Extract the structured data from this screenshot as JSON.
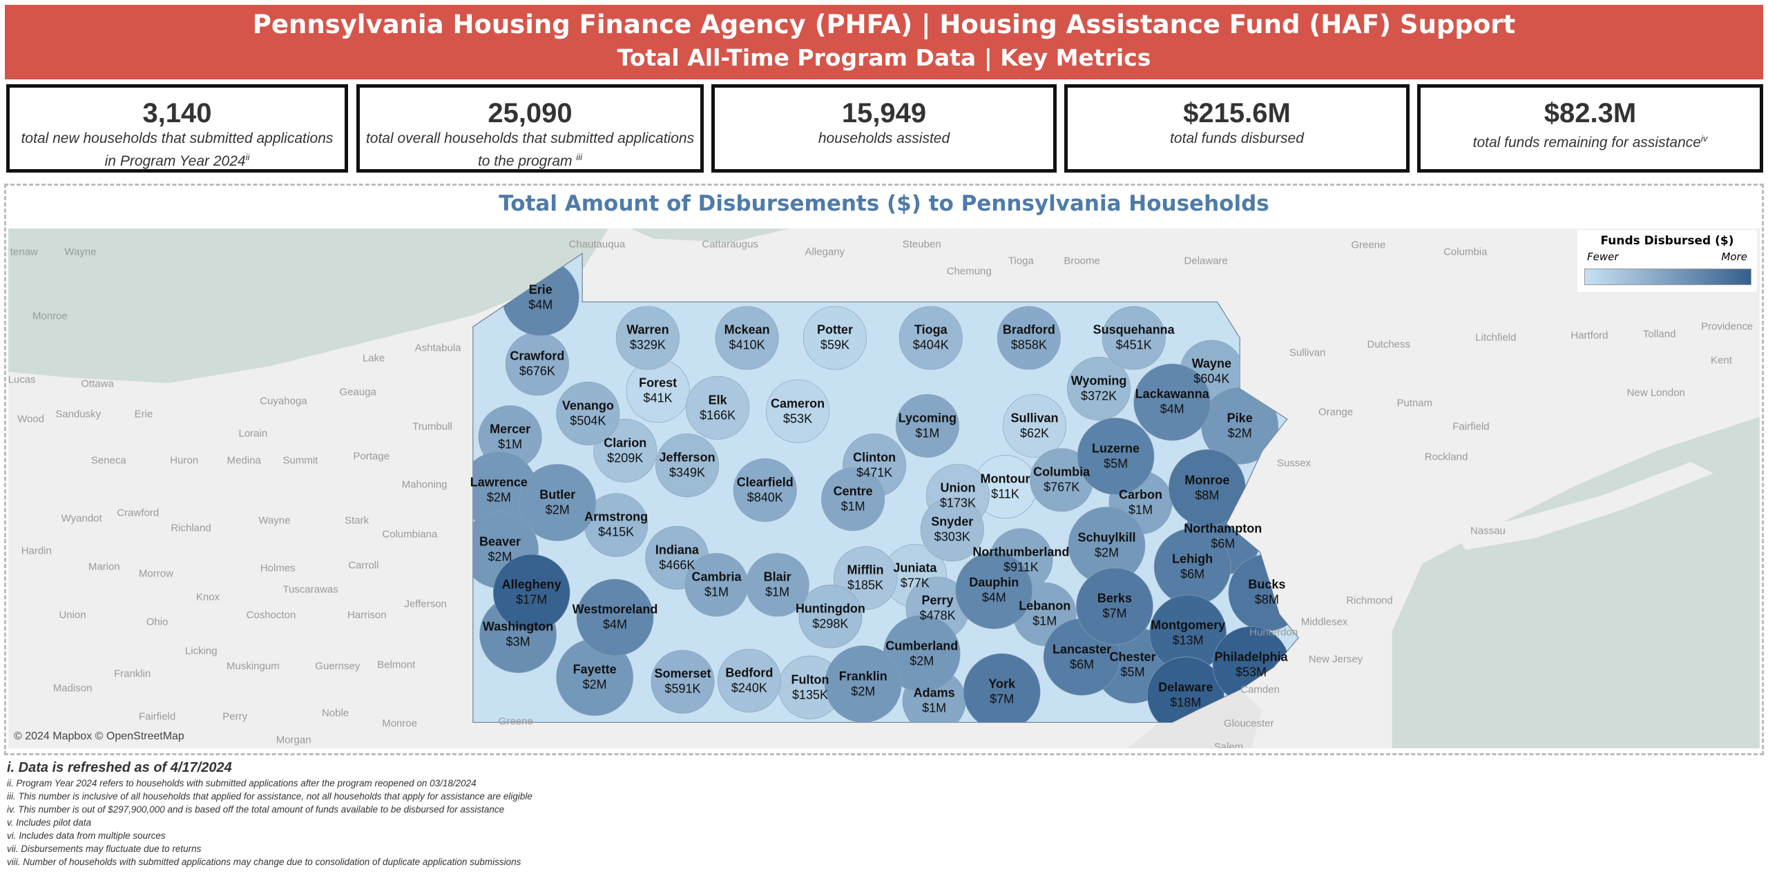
{
  "header": {
    "title": "Pennsylvania Housing Finance Agency (PHFA) | Housing Assistance Fund (HAF) Support",
    "subtitle": "Total All-Time Program Data | Key Metrics"
  },
  "kpis": [
    {
      "value": "3,140",
      "label": "total new households that submitted applications",
      "label2": "in Program Year 2024",
      "note": "ii"
    },
    {
      "value": "25,090",
      "label": "total overall households that submitted applications",
      "label2": "to the program ",
      "note": "iii"
    },
    {
      "value": "15,949",
      "label": "households assisted",
      "label2": "",
      "note": ""
    },
    {
      "value": "$215.6M",
      "label": "total funds disbursed",
      "label2": "",
      "note": ""
    },
    {
      "value": "$82.3M",
      "label": "total funds remaining for assistance",
      "label2": "",
      "note": "iv"
    }
  ],
  "map": {
    "title": "Total Amount of Disbursements ($) to Pennsylvania Households",
    "attribution": "© 2024 Mapbox © OpenStreetMap",
    "legend": {
      "title": "Funds Disbursed ($)",
      "low": "Fewer",
      "high": "More",
      "color_low": "#c7e1f3",
      "color_high": "#35608e"
    },
    "colors": {
      "water": "#cfdcd8",
      "land": "#efefef",
      "state_fill": "#c7e1f3"
    },
    "counties": [
      {
        "name": "Erie",
        "label": "$4M",
        "value": 4000000
      },
      {
        "name": "Crawford",
        "label": "$676K",
        "value": 676000
      },
      {
        "name": "Warren",
        "label": "$329K",
        "value": 329000
      },
      {
        "name": "Mckean",
        "label": "$410K",
        "value": 410000
      },
      {
        "name": "Potter",
        "label": "$59K",
        "value": 59000
      },
      {
        "name": "Tioga",
        "label": "$404K",
        "value": 404000
      },
      {
        "name": "Bradford",
        "label": "$858K",
        "value": 858000
      },
      {
        "name": "Susquehanna",
        "label": "$451K",
        "value": 451000
      },
      {
        "name": "Wayne",
        "label": "$604K",
        "value": 604000
      },
      {
        "name": "Forest",
        "label": "$41K",
        "value": 41000
      },
      {
        "name": "Venango",
        "label": "$504K",
        "value": 504000
      },
      {
        "name": "Elk",
        "label": "$166K",
        "value": 166000
      },
      {
        "name": "Cameron",
        "label": "$53K",
        "value": 53000
      },
      {
        "name": "Clinton",
        "label": "$471K",
        "value": 471000
      },
      {
        "name": "Lycoming",
        "label": "$1M",
        "value": 1000000
      },
      {
        "name": "Sullivan",
        "label": "$62K",
        "value": 62000
      },
      {
        "name": "Wyoming",
        "label": "$372K",
        "value": 372000
      },
      {
        "name": "Lackawanna",
        "label": "$4M",
        "value": 4000000
      },
      {
        "name": "Pike",
        "label": "$2M",
        "value": 2000000
      },
      {
        "name": "Mercer",
        "label": "$1M",
        "value": 1000000
      },
      {
        "name": "Clarion",
        "label": "$209K",
        "value": 209000
      },
      {
        "name": "Jefferson",
        "label": "$349K",
        "value": 349000
      },
      {
        "name": "Clearfield",
        "label": "$840K",
        "value": 840000
      },
      {
        "name": "Centre",
        "label": "$1M",
        "value": 1000000
      },
      {
        "name": "Union",
        "label": "$173K",
        "value": 173000
      },
      {
        "name": "Montour",
        "label": "$11K",
        "value": 11000
      },
      {
        "name": "Columbia",
        "label": "$767K",
        "value": 767000
      },
      {
        "name": "Luzerne",
        "label": "$5M",
        "value": 5000000
      },
      {
        "name": "Monroe",
        "label": "$8M",
        "value": 8000000
      },
      {
        "name": "Carbon",
        "label": "$1M",
        "value": 1000000
      },
      {
        "name": "Lawrence",
        "label": "$2M",
        "value": 2000000
      },
      {
        "name": "Butler",
        "label": "$2M",
        "value": 2000000
      },
      {
        "name": "Armstrong",
        "label": "$415K",
        "value": 415000
      },
      {
        "name": "Indiana",
        "label": "$466K",
        "value": 466000
      },
      {
        "name": "Snyder",
        "label": "$303K",
        "value": 303000
      },
      {
        "name": "Northumberland",
        "label": "$911K",
        "value": 911000
      },
      {
        "name": "Schuylkill",
        "label": "$2M",
        "value": 2000000
      },
      {
        "name": "Northampton",
        "label": "$6M",
        "value": 6000000
      },
      {
        "name": "Lehigh",
        "label": "$6M",
        "value": 6000000
      },
      {
        "name": "Beaver",
        "label": "$2M",
        "value": 2000000
      },
      {
        "name": "Allegheny",
        "label": "$17M",
        "value": 17000000
      },
      {
        "name": "Cambria",
        "label": "$1M",
        "value": 1000000
      },
      {
        "name": "Blair",
        "label": "$1M",
        "value": 1000000
      },
      {
        "name": "Mifflin",
        "label": "$185K",
        "value": 185000
      },
      {
        "name": "Juniata",
        "label": "$77K",
        "value": 77000
      },
      {
        "name": "Dauphin",
        "label": "$4M",
        "value": 4000000
      },
      {
        "name": "Lebanon",
        "label": "$1M",
        "value": 1000000
      },
      {
        "name": "Berks",
        "label": "$7M",
        "value": 7000000
      },
      {
        "name": "Bucks",
        "label": "$8M",
        "value": 8000000
      },
      {
        "name": "Westmoreland",
        "label": "$4M",
        "value": 4000000
      },
      {
        "name": "Huntingdon",
        "label": "$298K",
        "value": 298000
      },
      {
        "name": "Perry",
        "label": "$478K",
        "value": 478000
      },
      {
        "name": "Montgomery",
        "label": "$13M",
        "value": 13000000
      },
      {
        "name": "Washington",
        "label": "$3M",
        "value": 3000000
      },
      {
        "name": "Cumberland",
        "label": "$2M",
        "value": 2000000
      },
      {
        "name": "Lancaster",
        "label": "$6M",
        "value": 6000000
      },
      {
        "name": "Chester",
        "label": "$5M",
        "value": 5000000
      },
      {
        "name": "Philadelphia",
        "label": "$53M",
        "value": 53000000
      },
      {
        "name": "Delaware",
        "label": "$18M",
        "value": 18000000
      },
      {
        "name": "Somerset",
        "label": "$591K",
        "value": 591000
      },
      {
        "name": "Bedford",
        "label": "$240K",
        "value": 240000
      },
      {
        "name": "Fulton",
        "label": "$135K",
        "value": 135000
      },
      {
        "name": "Franklin",
        "label": "$2M",
        "value": 2000000
      },
      {
        "name": "Adams",
        "label": "$1M",
        "value": 1000000
      },
      {
        "name": "York",
        "label": "$7M",
        "value": 7000000
      },
      {
        "name": "Fayette",
        "label": "$2M",
        "value": 2000000
      }
    ],
    "basemap_labels": [
      "tenaw",
      "Wayne",
      "Monroe",
      "Lucas",
      "Ottawa",
      "Wood",
      "Sandusky",
      "Erie",
      "Cuyahoga",
      "Geauga",
      "Lake",
      "Ashtabula",
      "Trumbull",
      "Lorain",
      "Seneca",
      "Huron",
      "Medina",
      "Summit",
      "Portage",
      "Mahoning",
      "Wyandot",
      "Crawford",
      "Richland",
      "Wayne",
      "Stark",
      "Columbiana",
      "Hardin",
      "Marion",
      "Morrow",
      "Holmes",
      "Carroll",
      "Knox",
      "Tuscarawas",
      "Coshocton",
      "Harrison",
      "Jefferson",
      "Union",
      "Ohio",
      "Licking",
      "Guernsey",
      "Franklin",
      "Muskingum",
      "Belmont",
      "Madison",
      "Fairfield",
      "Perry",
      "Noble",
      "Monroe",
      "Morgan",
      "Greene",
      "Chautauqua",
      "Cattaraugus",
      "Allegany",
      "Steuben",
      "Chemung",
      "Tioga",
      "Broome",
      "Delaware",
      "Greene",
      "Columbia",
      "Dutchess",
      "Litchfield",
      "Hartford",
      "Tolland",
      "Providence",
      "Kent",
      "Sullivan",
      "Orange",
      "Putnam",
      "Fairfield",
      "New London",
      "Sussex",
      "Rockland",
      "Nassau",
      "Hunterdon",
      "Middlesex",
      "Richmond",
      "New Jersey",
      "Gloucester",
      "Salem",
      "Camden"
    ]
  },
  "footnotes": {
    "refresh": "i. Data is refreshed as of 4/17/2024",
    "notes": [
      "ii. Program Year 2024 refers to households with submitted applications after the program reopened on 03/18/2024",
      "iii. This number is inclusive of all households that applied for assistance, not all households that apply for assistance are eligible",
      "iv. This number is out of $297,900,000 and is based off the total amount of funds available to be disbursed for assistance",
      "v. Includes pilot data",
      "vi. Includes data from multiple sources",
      "vii. Disbursements may fluctuate due to returns",
      "viii. Number of households with submitted applications may change due to consolidation of duplicate application submissions"
    ]
  }
}
